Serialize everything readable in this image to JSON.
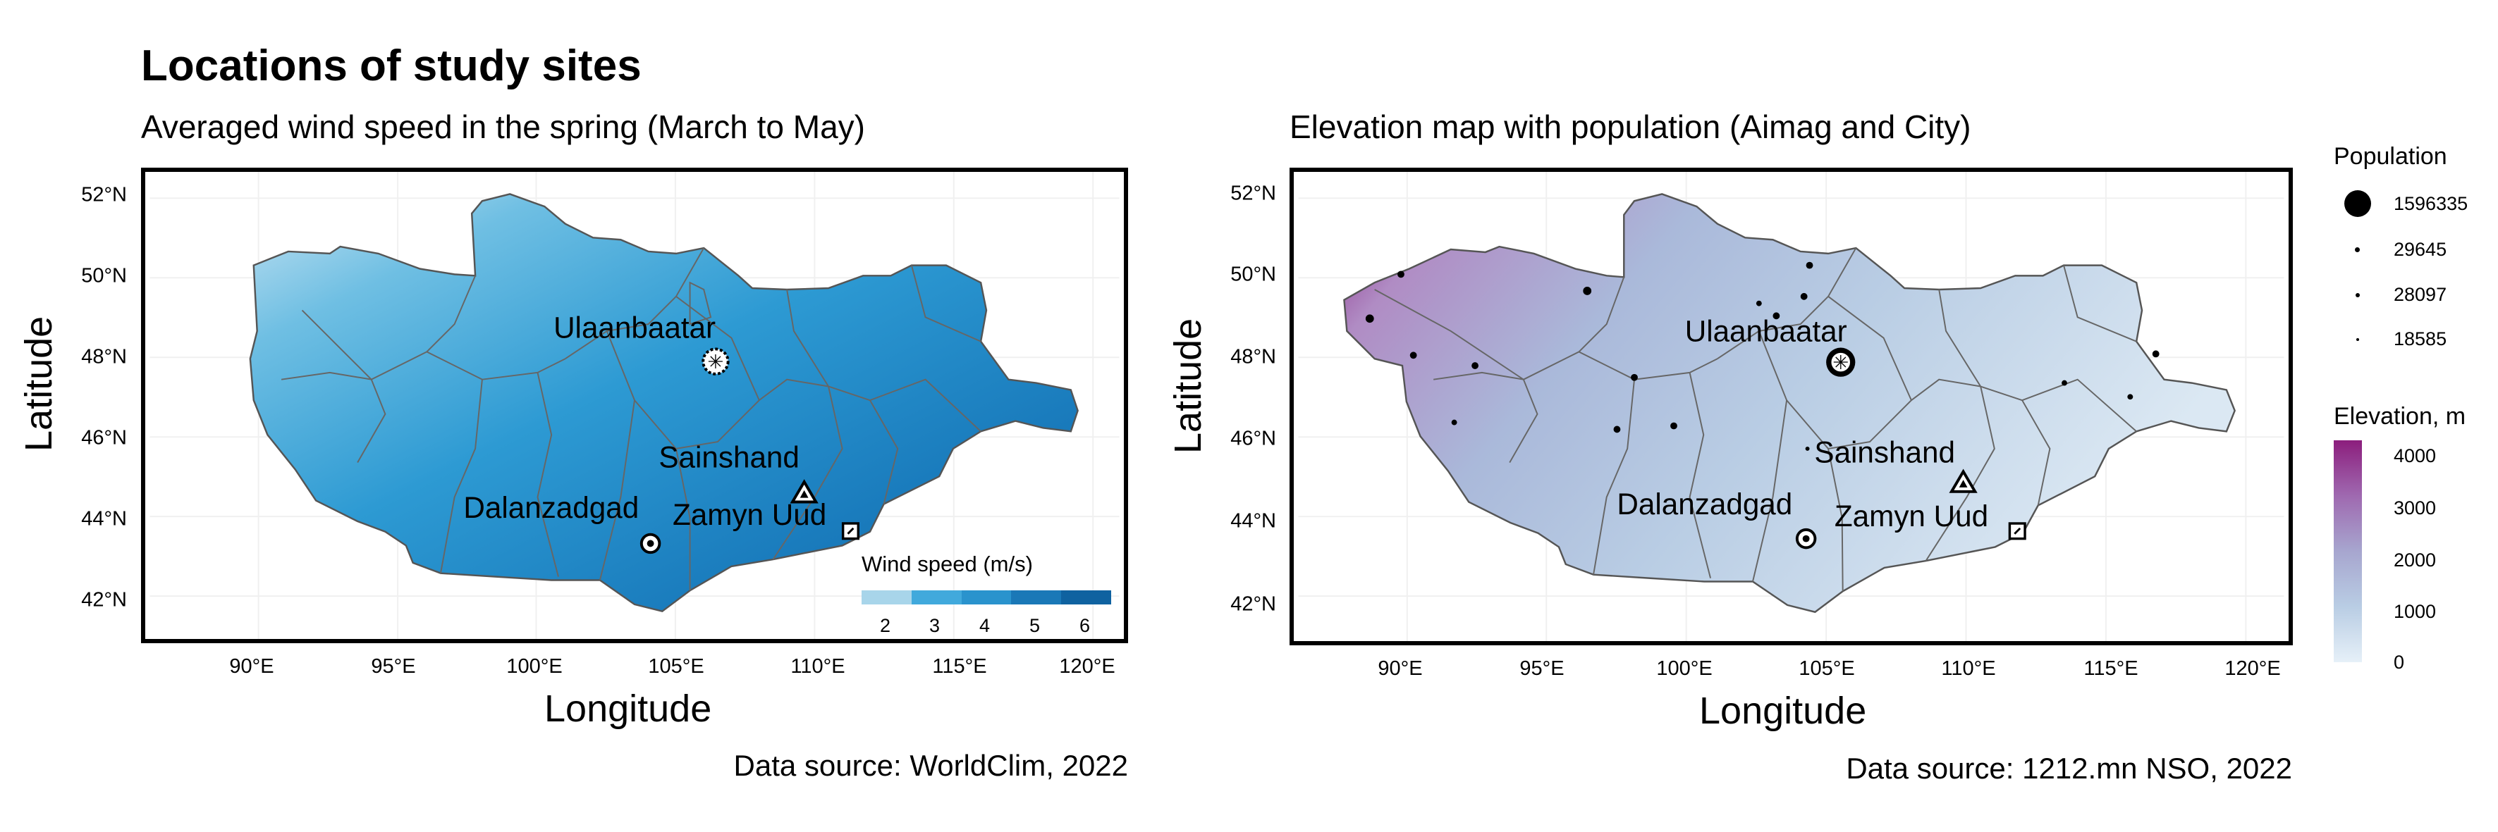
{
  "title": "Locations of study sites",
  "left_map": {
    "subtitle": "Averaged wind speed in the spring (March to May)",
    "x_label": "Longitude",
    "y_label": "Latitude",
    "lat_ticks": [
      "52°N",
      "50°N",
      "48°N",
      "46°N",
      "44°N",
      "42°N"
    ],
    "lon_ticks": [
      "90°E",
      "95°E",
      "100°E",
      "105°E",
      "110°E",
      "115°E",
      "120°E"
    ],
    "cities": {
      "ulaanbaatar": "Ulaanbaatar",
      "sainshand": "Sainshand",
      "dalanzadgad": "Dalanzadgad",
      "zamyn_uud": "Zamyn Uud"
    },
    "legend": {
      "title": "Wind speed (m/s)",
      "labels": [
        "2",
        "3",
        "4",
        "5",
        "6"
      ],
      "colors": [
        "#a8d5ea",
        "#41a9dc",
        "#2a93cd",
        "#1a78b7",
        "#0f62a0"
      ]
    },
    "source": "Data source: WorldClim, 2022"
  },
  "right_map": {
    "subtitle": "Elevation map with population (Aimag and City)",
    "x_label": "Longitude",
    "y_label": "Latitude",
    "lat_ticks": [
      "52°N",
      "50°N",
      "48°N",
      "46°N",
      "44°N",
      "42°N"
    ],
    "lon_ticks": [
      "90°E",
      "95°E",
      "100°E",
      "105°E",
      "110°E",
      "115°E",
      "120°E"
    ],
    "cities": {
      "ulaanbaatar": "Ulaanbaatar",
      "sainshand": "Sainshand",
      "dalanzadgad": "Dalanzadgad",
      "zamyn_uud": "Zamyn Uud"
    },
    "population_legend": {
      "title": "Population",
      "labels": [
        "1596335",
        "29645",
        "28097",
        "18585"
      ]
    },
    "elevation_legend": {
      "title": "Elevation, m",
      "labels": [
        "4000",
        "3000",
        "2000",
        "1000",
        "0"
      ],
      "colors": [
        "#8c1e7d",
        "#9f69b0",
        "#a8b8d8",
        "#dceaf4"
      ]
    },
    "source": "Data source: 1212.mn NSO, 2022"
  }
}
